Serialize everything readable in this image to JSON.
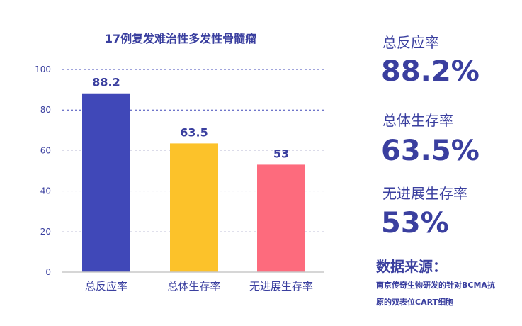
{
  "chart_data": {
    "type": "bar",
    "title": "17例复发难治性多发性骨髓瘤",
    "categories": [
      "总反应率",
      "总体生存率",
      "无进展生存率"
    ],
    "values": [
      88.2,
      63.5,
      53
    ],
    "value_labels": [
      "88.2",
      "63.5",
      "53"
    ],
    "colors": [
      "#4048b8",
      "#fcc22a",
      "#fd6b7d"
    ],
    "ylim": [
      0,
      100
    ],
    "yticks": [
      0,
      20,
      40,
      60,
      80,
      100
    ],
    "grid": true
  },
  "stats": [
    {
      "label": "总反应率",
      "value": "88.2%"
    },
    {
      "label": "总体生存率",
      "value": "63.5%"
    },
    {
      "label": "无进展生存率",
      "value": "53%"
    }
  ],
  "source": {
    "title": "数据来源：",
    "line1": "南京传奇生物研发的针对BCMA抗",
    "line2": "原的双表位CART细胞"
  }
}
